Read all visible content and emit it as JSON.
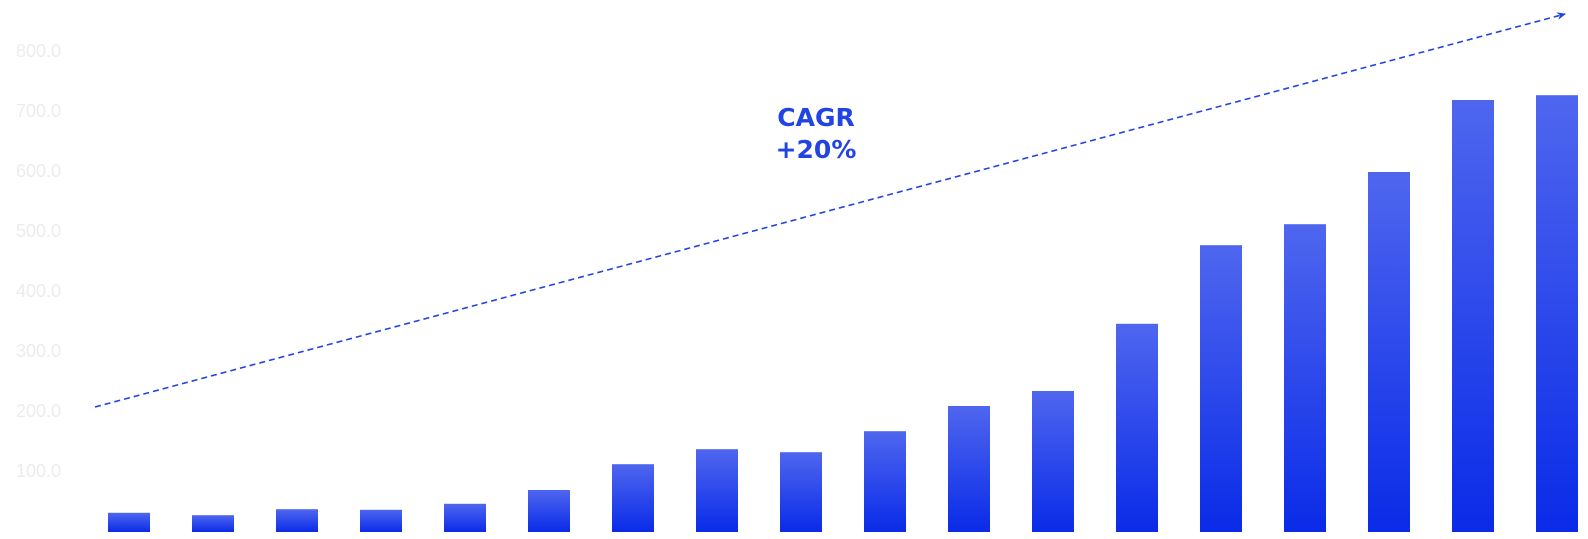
{
  "chart_data": {
    "type": "bar",
    "annotations": [
      "CAGR",
      "+20%"
    ],
    "categories": [
      null,
      null,
      null,
      null,
      null,
      null,
      null,
      null,
      null,
      null,
      null,
      null,
      null,
      null,
      null,
      null,
      null,
      null
    ],
    "values": [
      32,
      28,
      38,
      37,
      47,
      70,
      113,
      138,
      133,
      168,
      210,
      235,
      347,
      478,
      513,
      600,
      720,
      728
    ],
    "color": "#0a2be8",
    "ylim": [
      0,
      800
    ],
    "yticks": [
      {
        "value": 100,
        "label": "100.0"
      },
      {
        "value": 200,
        "label": "200.0"
      },
      {
        "value": 300,
        "label": "300.0"
      },
      {
        "value": 400,
        "label": "400.0"
      },
      {
        "value": 500,
        "label": "500.0"
      },
      {
        "value": 600,
        "label": "600.0"
      },
      {
        "value": 700,
        "label": "700.0"
      },
      {
        "value": 800,
        "label": "800.0"
      }
    ],
    "grid": false
  }
}
